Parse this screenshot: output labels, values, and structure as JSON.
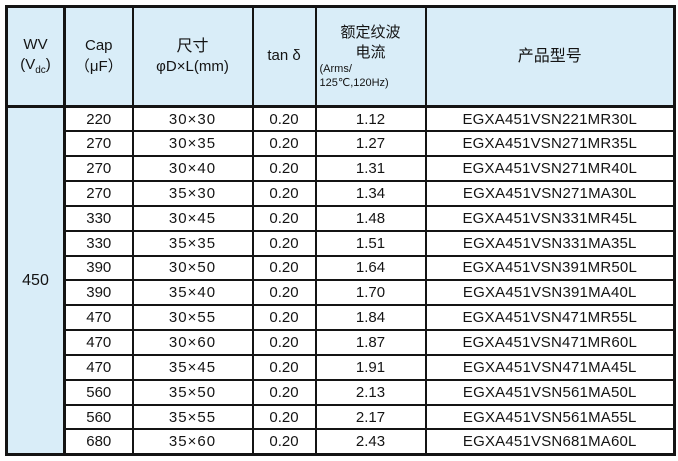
{
  "table": {
    "header": {
      "wv": {
        "line1": "WV",
        "paren_open": "(V",
        "sub": "dc",
        "paren_close": ")"
      },
      "cap": {
        "line1": "Cap",
        "line2": "（μF）"
      },
      "size": {
        "line1": "尺寸",
        "line2": "φD×L(mm)"
      },
      "tan": {
        "label": "tan δ"
      },
      "ripple": {
        "line1": "额定纹波",
        "line2": "电流",
        "line3": "(Arms/",
        "line4": "125℃,120Hz)"
      },
      "model": {
        "label": "产品型号"
      }
    },
    "wv_value": "450",
    "rows": [
      {
        "cap": "220",
        "size": "30×30",
        "tan": "0.20",
        "ripple": "1.12",
        "model": "EGXA451VSN221MR30L"
      },
      {
        "cap": "270",
        "size": "30×35",
        "tan": "0.20",
        "ripple": "1.27",
        "model": "EGXA451VSN271MR35L"
      },
      {
        "cap": "270",
        "size": "30×40",
        "tan": "0.20",
        "ripple": "1.31",
        "model": "EGXA451VSN271MR40L"
      },
      {
        "cap": "270",
        "size": "35×30",
        "tan": "0.20",
        "ripple": "1.34",
        "model": "EGXA451VSN271MA30L"
      },
      {
        "cap": "330",
        "size": "30×45",
        "tan": "0.20",
        "ripple": "1.48",
        "model": "EGXA451VSN331MR45L"
      },
      {
        "cap": "330",
        "size": "35×35",
        "tan": "0.20",
        "ripple": "1.51",
        "model": "EGXA451VSN331MA35L"
      },
      {
        "cap": "390",
        "size": "30×50",
        "tan": "0.20",
        "ripple": "1.64",
        "model": "EGXA451VSN391MR50L"
      },
      {
        "cap": "390",
        "size": "35×40",
        "tan": "0.20",
        "ripple": "1.70",
        "model": "EGXA451VSN391MA40L"
      },
      {
        "cap": "470",
        "size": "30×55",
        "tan": "0.20",
        "ripple": "1.84",
        "model": "EGXA451VSN471MR55L"
      },
      {
        "cap": "470",
        "size": "30×60",
        "tan": "0.20",
        "ripple": "1.87",
        "model": "EGXA451VSN471MR60L"
      },
      {
        "cap": "470",
        "size": "35×45",
        "tan": "0.20",
        "ripple": "1.91",
        "model": "EGXA451VSN471MA45L"
      },
      {
        "cap": "560",
        "size": "35×50",
        "tan": "0.20",
        "ripple": "2.13",
        "model": "EGXA451VSN561MA50L"
      },
      {
        "cap": "560",
        "size": "35×55",
        "tan": "0.20",
        "ripple": "2.17",
        "model": "EGXA451VSN561MA55L"
      },
      {
        "cap": "680",
        "size": "35×60",
        "tan": "0.20",
        "ripple": "2.43",
        "model": "EGXA451VSN681MA60L"
      }
    ],
    "colors": {
      "header_bg": "#d9edf8",
      "border": "#141414",
      "row_bg": "#ffffff"
    }
  }
}
